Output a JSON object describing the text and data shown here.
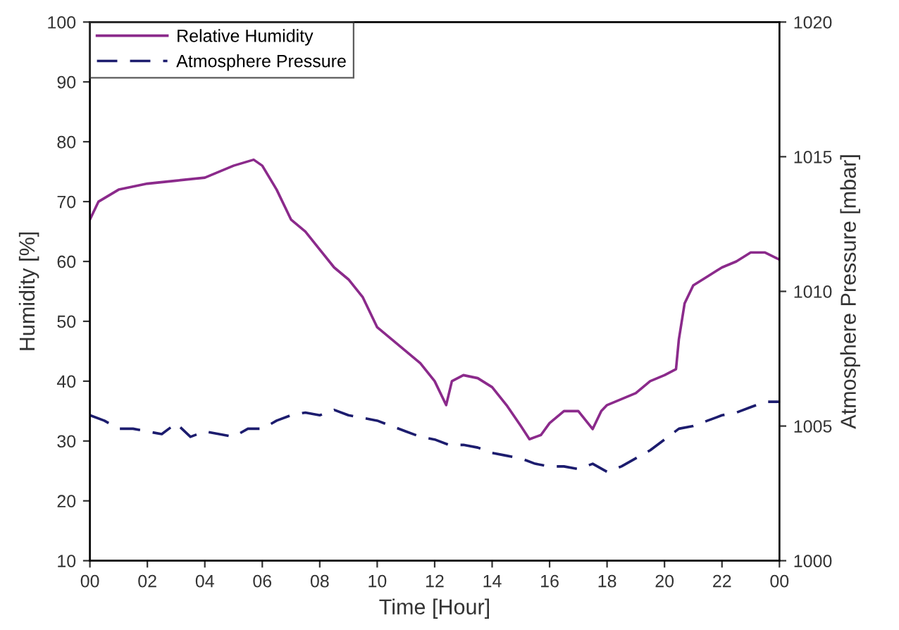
{
  "chart_data": {
    "type": "line",
    "xlabel": "Time [Hour]",
    "ylabel": "Humidity [%]",
    "y2label": "Atmosphere Pressure [mbar]",
    "xlim": [
      0,
      24
    ],
    "xticks": [
      {
        "value": 0,
        "label": "00"
      },
      {
        "value": 2,
        "label": "02"
      },
      {
        "value": 4,
        "label": "04"
      },
      {
        "value": 6,
        "label": "06"
      },
      {
        "value": 8,
        "label": "08"
      },
      {
        "value": 10,
        "label": "10"
      },
      {
        "value": 12,
        "label": "12"
      },
      {
        "value": 14,
        "label": "14"
      },
      {
        "value": 16,
        "label": "16"
      },
      {
        "value": 18,
        "label": "18"
      },
      {
        "value": 20,
        "label": "20"
      },
      {
        "value": 22,
        "label": "22"
      },
      {
        "value": 24,
        "label": "00"
      }
    ],
    "ylim": [
      10,
      100
    ],
    "yticks": [
      10,
      20,
      30,
      40,
      50,
      60,
      70,
      80,
      90,
      100
    ],
    "y2lim": [
      1000,
      1020
    ],
    "y2ticks": [
      1000,
      1005,
      1010,
      1015,
      1020
    ],
    "grid": false,
    "legend": "top left",
    "series": [
      {
        "name": "Relative Humidity",
        "color": "#8b2a8b",
        "line_style": "solid",
        "x": [
          0,
          0.3,
          1,
          1.5,
          2,
          3,
          4,
          4.5,
          5,
          5.7,
          6,
          6.5,
          7,
          7.5,
          8,
          8.5,
          9,
          9.5,
          10,
          10.5,
          11,
          11.5,
          12,
          12.4,
          12.6,
          13,
          13.5,
          14,
          14.5,
          15,
          15.3,
          15.7,
          16,
          16.5,
          17,
          17.5,
          17.8,
          18,
          18.5,
          19,
          19.5,
          20,
          20.4,
          20.5,
          20.7,
          21,
          21.5,
          22,
          22.5,
          23,
          23.5,
          24
        ],
        "values": [
          67,
          70,
          72,
          72.5,
          73,
          73.5,
          74,
          75,
          76,
          77,
          76,
          72,
          67,
          65,
          62,
          59,
          57,
          54,
          49,
          47,
          45,
          43,
          40,
          36,
          40,
          41,
          40.5,
          39,
          36,
          32.5,
          30.3,
          31,
          33,
          35,
          35,
          32,
          35,
          36,
          37,
          38,
          40,
          41,
          42,
          47,
          53,
          56,
          57.5,
          59,
          60,
          61.5,
          61.5,
          60.3
        ]
      },
      {
        "name": "Atmosphere Pressure",
        "color": "#1c1c6e",
        "line_style": "dashed",
        "axis": "y2",
        "x": [
          0,
          0.5,
          1,
          1.5,
          2,
          2.5,
          3,
          3.5,
          4,
          4.5,
          5,
          5.5,
          6,
          6.5,
          7,
          7.5,
          8,
          8.5,
          9,
          9.5,
          10,
          10.5,
          11,
          11.5,
          12,
          12.5,
          13,
          13.5,
          14,
          14.5,
          15,
          15.5,
          16,
          16.5,
          17,
          17.5,
          18,
          18.5,
          19,
          19.5,
          20,
          20.5,
          21,
          21.5,
          22,
          22.5,
          23,
          23.5,
          24
        ],
        "values": [
          1005.4,
          1005.2,
          1004.9,
          1004.9,
          1004.8,
          1004.7,
          1005.1,
          1004.6,
          1004.8,
          1004.7,
          1004.6,
          1004.9,
          1004.9,
          1005.2,
          1005.4,
          1005.5,
          1005.4,
          1005.6,
          1005.4,
          1005.3,
          1005.2,
          1005.0,
          1004.8,
          1004.6,
          1004.5,
          1004.3,
          1004.3,
          1004.2,
          1004.0,
          1003.9,
          1003.8,
          1003.6,
          1003.5,
          1003.5,
          1003.4,
          1003.6,
          1003.3,
          1003.5,
          1003.8,
          1004.1,
          1004.5,
          1004.9,
          1005.0,
          1005.2,
          1005.4,
          1005.5,
          1005.7,
          1005.9,
          1005.9
        ]
      }
    ]
  }
}
